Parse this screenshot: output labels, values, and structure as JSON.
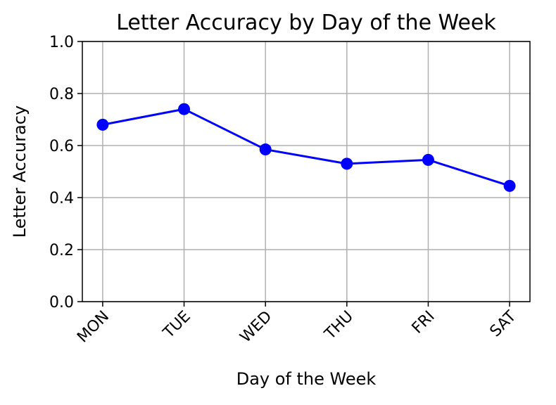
{
  "chart_data": {
    "type": "line",
    "title": "Letter Accuracy by Day of the Week",
    "xlabel": "Day of the Week",
    "ylabel": "Letter Accuracy",
    "categories": [
      "MON",
      "TUE",
      "WED",
      "THU",
      "FRI",
      "SAT"
    ],
    "series": [
      {
        "values": [
          0.68,
          0.74,
          0.585,
          0.53,
          0.545,
          0.445
        ],
        "color": "#0000ff",
        "marker": "circle"
      }
    ],
    "ylim": [
      0,
      1.0
    ],
    "yticks": [
      "0.0",
      "0.2",
      "0.4",
      "0.6",
      "0.8",
      "1.0"
    ],
    "grid": true,
    "xtick_rotation": "45 degrees"
  }
}
